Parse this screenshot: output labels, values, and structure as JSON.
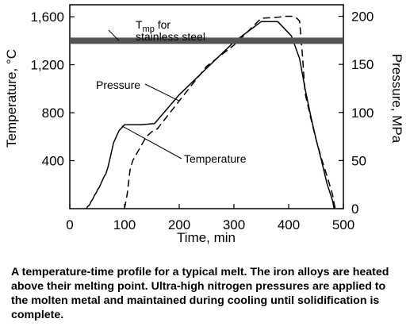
{
  "chart_data": {
    "type": "line",
    "xlabel": "Time, min",
    "ylabel_left": "Temperature, °C",
    "ylabel_right": "Pressure, MPa",
    "xlim": [
      0,
      500
    ],
    "ylim_left": [
      0,
      1700
    ],
    "ylim_right": [
      0,
      212
    ],
    "x_ticks": [
      0,
      100,
      200,
      300,
      400,
      500
    ],
    "x_tick_labels": [
      "0",
      "100",
      "200",
      "300",
      "400",
      "500"
    ],
    "y_left_ticks": [
      400,
      800,
      1200,
      1600
    ],
    "y_left_tick_labels": [
      "400",
      "800",
      "1,200",
      "1,600"
    ],
    "y_right_ticks": [
      0,
      50,
      100,
      150,
      200
    ],
    "y_right_tick_labels": [
      "0",
      "50",
      "100",
      "150",
      "200"
    ],
    "grid": false,
    "series": [
      {
        "name": "Temperature",
        "axis": "left",
        "style": "solid",
        "x": [
          30,
          33,
          36,
          39,
          42,
          45,
          48,
          51,
          54,
          57,
          60,
          63,
          66,
          70,
          75,
          80,
          90,
          100,
          110,
          130,
          155,
          200,
          250,
          300,
          350,
          380,
          405,
          420,
          430,
          440,
          450,
          460,
          470,
          480,
          483
        ],
        "y": [
          0,
          20,
          30,
          60,
          80,
          110,
          130,
          160,
          180,
          210,
          240,
          270,
          290,
          350,
          450,
          550,
          650,
          700,
          700,
          700,
          710,
          950,
          1170,
          1390,
          1560,
          1560,
          1440,
          1250,
          1000,
          780,
          580,
          400,
          210,
          70,
          0
        ]
      },
      {
        "name": "Pressure",
        "axis": "right",
        "style": "dashed",
        "x": [
          100,
          105,
          110,
          115,
          120,
          130,
          140,
          150,
          160,
          200,
          250,
          300,
          350,
          380,
          395,
          405,
          415,
          420,
          425,
          430,
          440,
          450,
          460,
          470,
          480,
          485
        ],
        "y": [
          0,
          15,
          40,
          50,
          55,
          65,
          75,
          80,
          83,
          112,
          148,
          170,
          198,
          199,
          200,
          200,
          198,
          195,
          160,
          120,
          95,
          72,
          52,
          34,
          15,
          0
        ]
      },
      {
        "name": "Tmp for stainless steel",
        "axis": "left",
        "style": "thick",
        "x": [
          0,
          500
        ],
        "y": [
          1400,
          1400
        ]
      }
    ],
    "annotations": {
      "tmp_line1": "T",
      "tmp_subscript": "mp",
      "tmp_line1_rest": " for",
      "tmp_line2": "stainless steel",
      "pressure_label": "Pressure",
      "temperature_label": "Temperature"
    }
  },
  "caption": "A temperature-time profile for a typical melt.  The iron alloys are heated above their melting point.  Ultra-high nitrogen pressures are applied to the molten metal and maintained during cooling until solidification is complete."
}
